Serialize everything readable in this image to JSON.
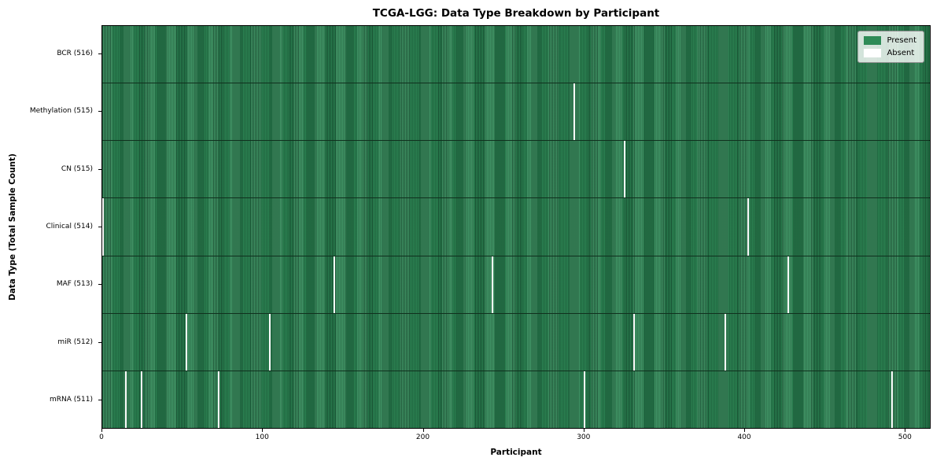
{
  "chart_data": {
    "type": "heatmap",
    "title": "TCGA-LGG: Data Type Breakdown by Participant",
    "xlabel": "Participant",
    "ylabel": "Data Type (Total Sample Count)",
    "n_participants": 516,
    "x_ticks": [
      0,
      100,
      200,
      300,
      400,
      500
    ],
    "legend_position": "upper right",
    "grid": false,
    "colors": {
      "present": "#2e8b57",
      "present_stripe": "#17492d",
      "absent": "#fafafa"
    },
    "legend": [
      {
        "label": "Present",
        "color": "#2e8b57"
      },
      {
        "label": "Absent",
        "color": "#ffffff"
      }
    ],
    "rows": [
      {
        "label": "BCR (516)",
        "present_count": 516,
        "absent_participants": []
      },
      {
        "label": "Methylation (515)",
        "present_count": 515,
        "absent_participants": [
          294
        ]
      },
      {
        "label": "CN (515)",
        "present_count": 515,
        "absent_participants": [
          325
        ]
      },
      {
        "label": "Clinical (514)",
        "present_count": 514,
        "absent_participants": [
          0,
          402
        ]
      },
      {
        "label": "MAF (513)",
        "present_count": 513,
        "absent_participants": [
          144,
          243,
          427
        ]
      },
      {
        "label": "miR (512)",
        "present_count": 512,
        "absent_participants": [
          52,
          104,
          331,
          388
        ]
      },
      {
        "label": "mRNA (511)",
        "present_count": 511,
        "absent_participants": [
          14,
          24,
          72,
          300,
          492
        ]
      }
    ]
  }
}
